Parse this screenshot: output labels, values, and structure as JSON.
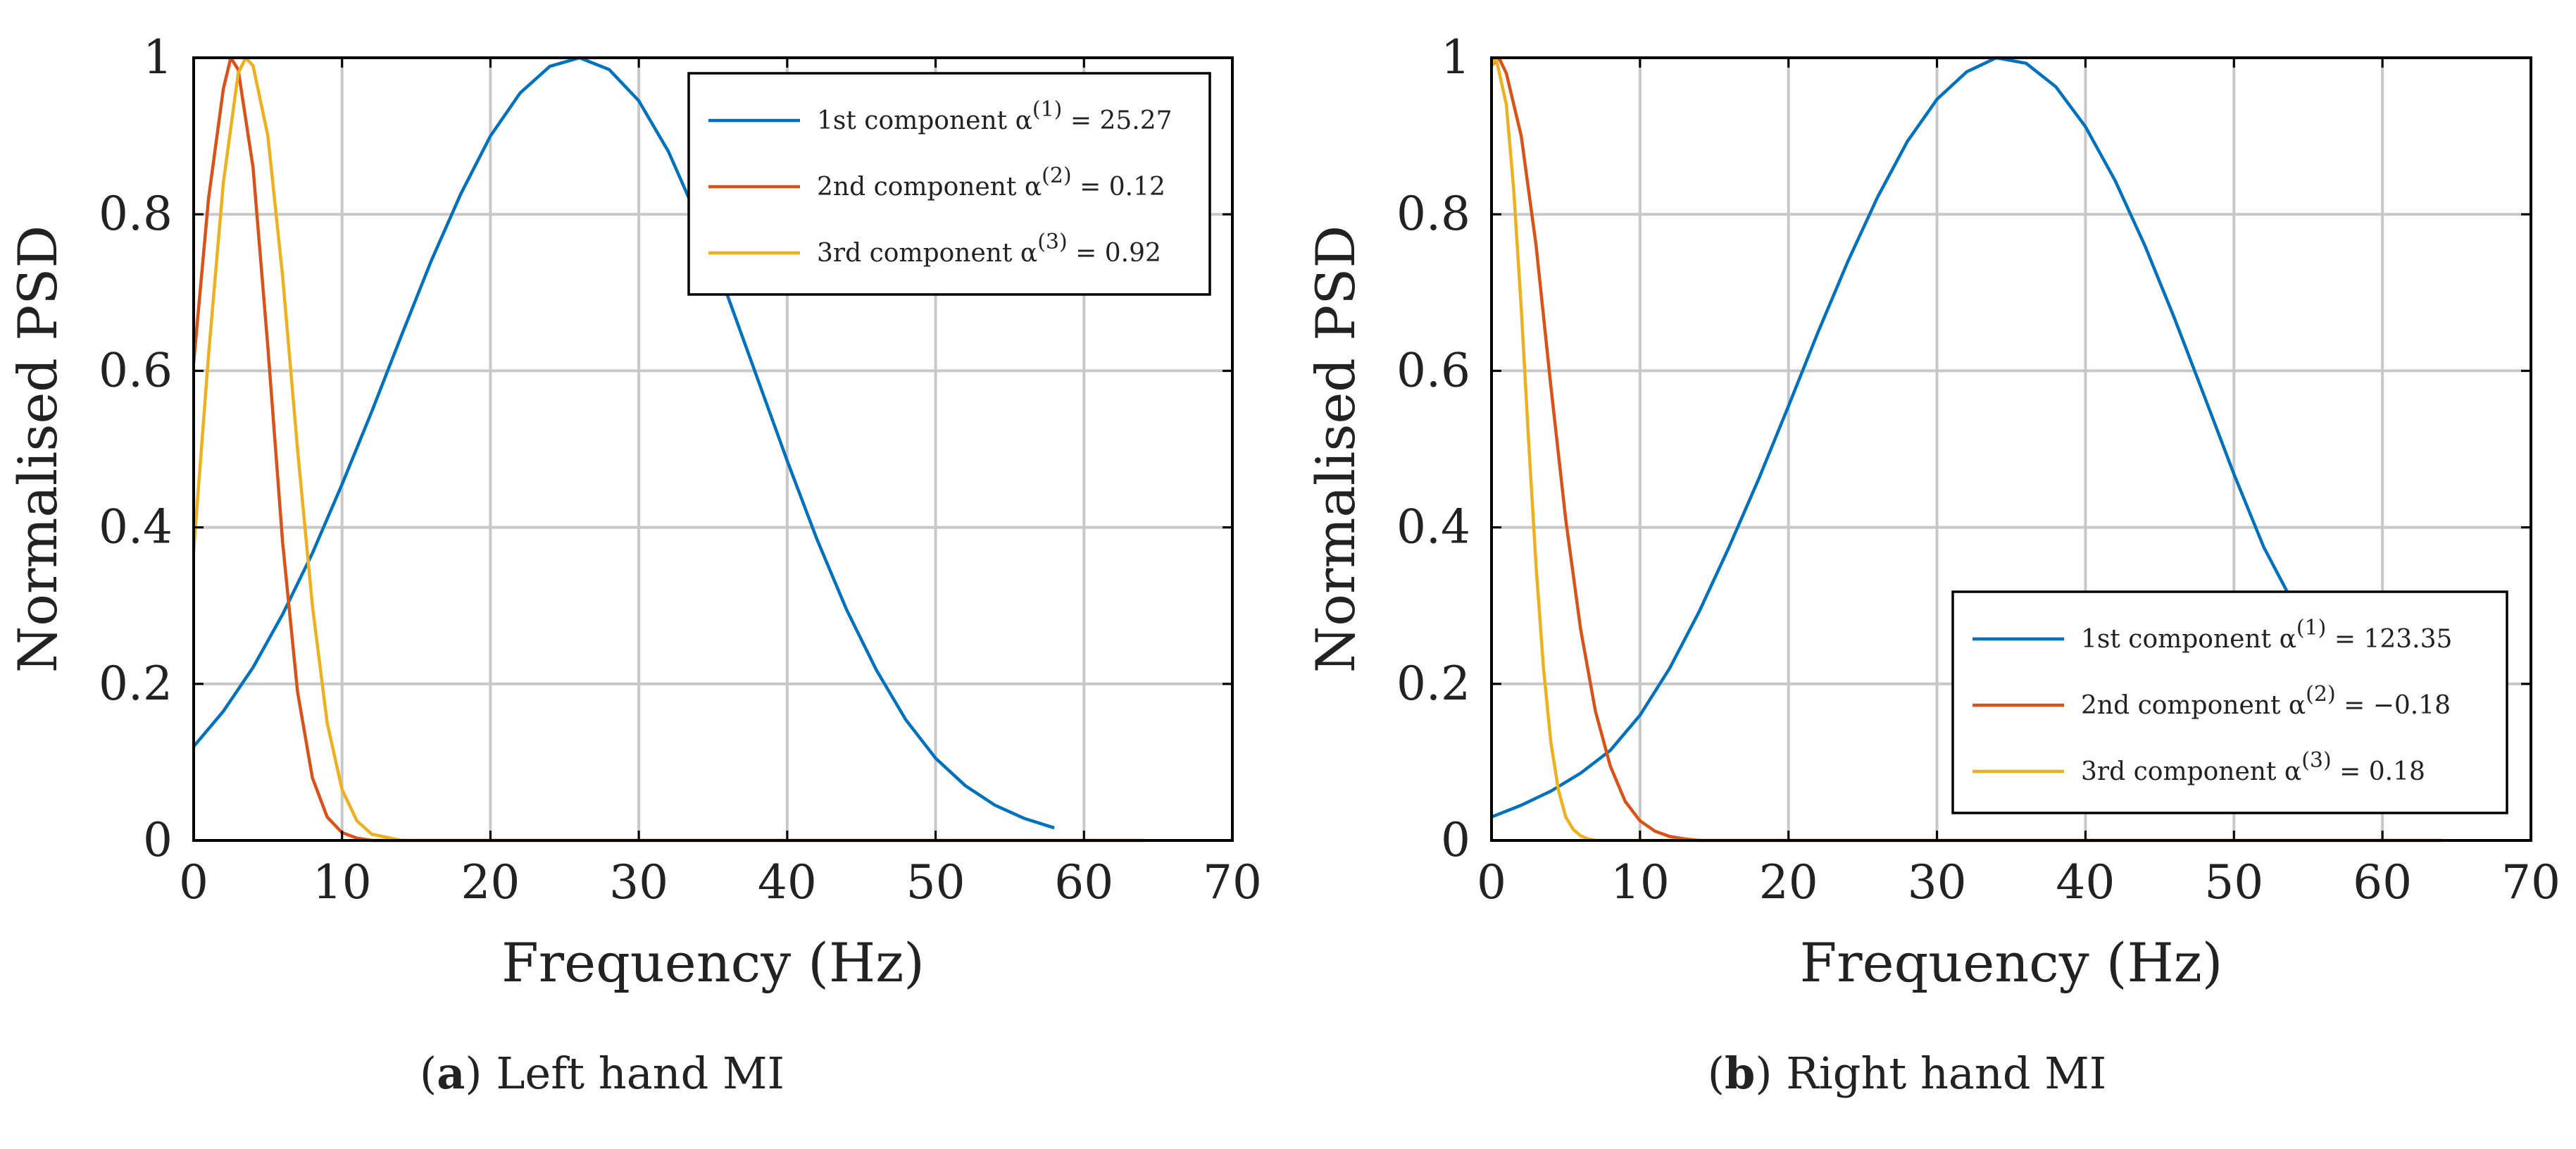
{
  "figure": {
    "subfigures": [
      {
        "label": "a",
        "caption": "Left hand MI"
      },
      {
        "label": "b",
        "caption": "Right hand MI"
      }
    ]
  },
  "chart_data": [
    {
      "type": "line",
      "title": "",
      "xlabel": "Frequency (Hz)",
      "ylabel": "Normalised PSD",
      "xlim": [
        0,
        70
      ],
      "ylim": [
        0,
        1
      ],
      "xticks": [
        0,
        10,
        20,
        30,
        40,
        50,
        60,
        70
      ],
      "yticks": [
        0,
        0.2,
        0.4,
        0.6,
        0.8,
        1
      ],
      "ytick_labels": [
        "0",
        "0.2",
        "0.4",
        "0.6",
        "0.8",
        "1"
      ],
      "grid": true,
      "legend_position": "top-right",
      "series": [
        {
          "name": "1st component",
          "alpha_sup": "(1)",
          "alpha_value": "25.27",
          "color": "#0072BD",
          "x": [
            0,
            2,
            4,
            6,
            8,
            10,
            12,
            14,
            16,
            18,
            20,
            22,
            24,
            26,
            28,
            30,
            32,
            34,
            36,
            38,
            40,
            42,
            44,
            46,
            48,
            50,
            52,
            54,
            56,
            58
          ],
          "y": [
            0.12,
            0.165,
            0.221,
            0.289,
            0.367,
            0.455,
            0.548,
            0.645,
            0.74,
            0.826,
            0.9,
            0.955,
            0.989,
            1.0,
            0.985,
            0.945,
            0.88,
            0.794,
            0.695,
            0.59,
            0.485,
            0.385,
            0.295,
            0.218,
            0.154,
            0.105,
            0.07,
            0.045,
            0.028,
            0.016
          ]
        },
        {
          "name": "2nd component",
          "alpha_sup": "(2)",
          "alpha_value": "0.12",
          "color": "#D95319",
          "x": [
            0,
            1,
            2,
            2.5,
            3,
            4,
            5,
            6,
            7,
            8,
            9,
            10,
            11,
            12,
            14,
            16,
            20,
            30,
            40,
            50,
            60,
            64
          ],
          "y": [
            0.61,
            0.82,
            0.96,
            1.0,
            0.985,
            0.86,
            0.63,
            0.38,
            0.19,
            0.08,
            0.03,
            0.01,
            0.003,
            0.0,
            0,
            0,
            0,
            0,
            0,
            0,
            0,
            0
          ]
        },
        {
          "name": "3rd component",
          "alpha_sup": "(3)",
          "alpha_value": "0.92",
          "color": "#EDB120",
          "x": [
            0,
            1,
            2,
            3,
            3.5,
            4,
            5,
            6,
            7,
            8,
            9,
            10,
            11,
            12,
            14,
            16,
            20,
            30,
            40,
            50,
            60,
            64
          ],
          "y": [
            0.37,
            0.62,
            0.84,
            0.98,
            1.0,
            0.99,
            0.9,
            0.72,
            0.5,
            0.3,
            0.15,
            0.065,
            0.025,
            0.008,
            0,
            0,
            0,
            0,
            0,
            0,
            0,
            0
          ]
        }
      ]
    },
    {
      "type": "line",
      "title": "",
      "xlabel": "Frequency (Hz)",
      "ylabel": "Normalised PSD",
      "xlim": [
        0,
        70
      ],
      "ylim": [
        0,
        1
      ],
      "xticks": [
        0,
        10,
        20,
        30,
        40,
        50,
        60,
        70
      ],
      "yticks": [
        0,
        0.2,
        0.4,
        0.6,
        0.8,
        1
      ],
      "ytick_labels": [
        "0",
        "0.2",
        "0.4",
        "0.6",
        "0.8",
        "1"
      ],
      "grid": true,
      "legend_position": "bottom-right",
      "series": [
        {
          "name": "1st component",
          "alpha_sup": "(1)",
          "alpha_value": "123.35",
          "color": "#0072BD",
          "x": [
            0,
            2,
            4,
            6,
            8,
            10,
            12,
            14,
            16,
            18,
            20,
            22,
            24,
            26,
            28,
            30,
            32,
            34,
            36,
            38,
            40,
            42,
            44,
            46,
            48,
            50,
            52,
            53.8
          ],
          "y": [
            0.03,
            0.045,
            0.063,
            0.086,
            0.115,
            0.16,
            0.22,
            0.293,
            0.375,
            0.462,
            0.555,
            0.65,
            0.74,
            0.822,
            0.893,
            0.947,
            0.982,
            1.0,
            0.993,
            0.963,
            0.912,
            0.843,
            0.76,
            0.667,
            0.568,
            0.468,
            0.375,
            0.31
          ]
        },
        {
          "name": "2nd component",
          "alpha_sup": "(2)",
          "alpha_value": "−0.18",
          "color": "#D95319",
          "x": [
            0,
            0.5,
            1,
            2,
            3,
            4,
            5,
            6,
            7,
            8,
            9,
            10,
            11,
            12,
            13,
            14,
            16,
            20,
            30,
            40,
            50,
            60,
            64
          ],
          "y": [
            0.99,
            1.0,
            0.98,
            0.9,
            0.76,
            0.58,
            0.41,
            0.27,
            0.165,
            0.095,
            0.05,
            0.025,
            0.012,
            0.005,
            0.002,
            0.0,
            0,
            0,
            0,
            0,
            0,
            0,
            0
          ]
        },
        {
          "name": "3rd component",
          "alpha_sup": "(3)",
          "alpha_value": "0.18",
          "color": "#EDB120",
          "x": [
            0,
            0.3,
            1,
            1.5,
            2,
            2.5,
            3,
            3.5,
            4,
            4.5,
            5,
            5.5,
            6,
            6.5,
            7,
            8,
            10,
            20,
            30,
            40,
            50,
            60,
            64
          ],
          "y": [
            0.99,
            1.0,
            0.94,
            0.83,
            0.68,
            0.51,
            0.35,
            0.22,
            0.125,
            0.065,
            0.03,
            0.014,
            0.006,
            0.002,
            0.0,
            0,
            0,
            0,
            0,
            0,
            0,
            0,
            0
          ]
        }
      ]
    }
  ]
}
